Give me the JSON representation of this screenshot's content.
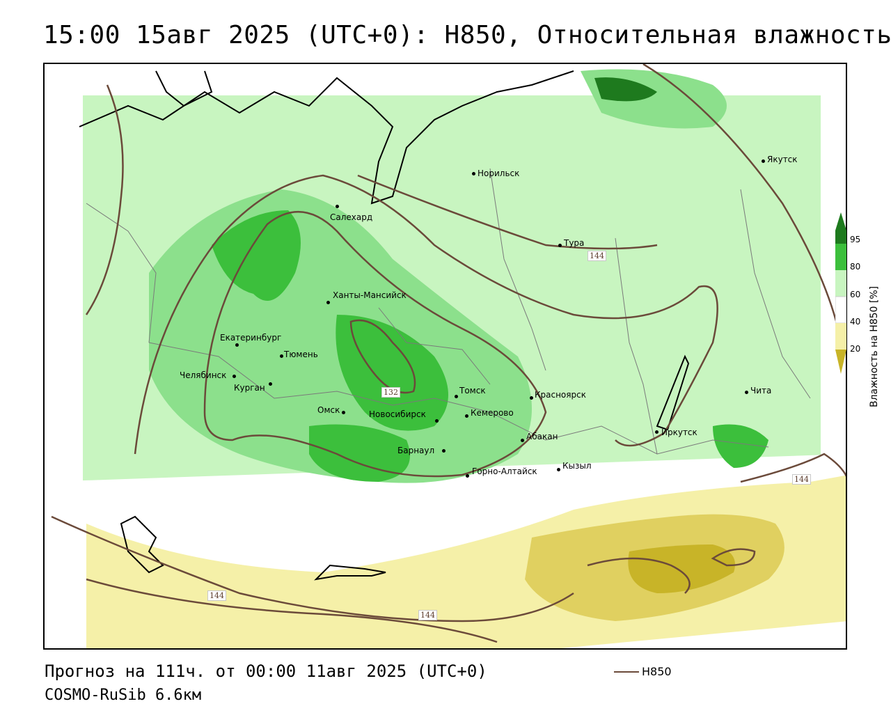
{
  "title": "15:00 15авг 2025 (UTC+0): H850, Относительная влажность",
  "footer": {
    "forecast": "Прогноз на 111ч. от 00:00 11авг 2025 (UTC+0)",
    "model": "COSMO-RuSib 6.6км"
  },
  "legend": {
    "h850_label": "H850"
  },
  "colorbar": {
    "title": "Влажность на H850 [%]",
    "ticks": [
      "95",
      "80",
      "60",
      "40",
      "20"
    ],
    "colors": [
      "#1e7a1e",
      "#3cbf3c",
      "#8ce08c",
      "#c8f5c0",
      "#ffffff",
      "#f5f0a8",
      "#e0d060",
      "#c8b428"
    ]
  },
  "contour_labels": [
    "144",
    "132",
    "144",
    "144",
    "144"
  ],
  "cities": [
    {
      "name": "Норильск"
    },
    {
      "name": "Якутск"
    },
    {
      "name": "Салехард"
    },
    {
      "name": "Тура"
    },
    {
      "name": "Ханты-Мансийск"
    },
    {
      "name": "Екатеринбург"
    },
    {
      "name": "Тюмень"
    },
    {
      "name": "Челябинск"
    },
    {
      "name": "Курган"
    },
    {
      "name": "Томск"
    },
    {
      "name": "Красноярск"
    },
    {
      "name": "Омск"
    },
    {
      "name": "Новосибирск"
    },
    {
      "name": "Кемерово"
    },
    {
      "name": "Абакан"
    },
    {
      "name": "Барнаул"
    },
    {
      "name": "Иркутск"
    },
    {
      "name": "Чита"
    },
    {
      "name": "Горно-Алтайск"
    },
    {
      "name": "Кызыл"
    }
  ]
}
